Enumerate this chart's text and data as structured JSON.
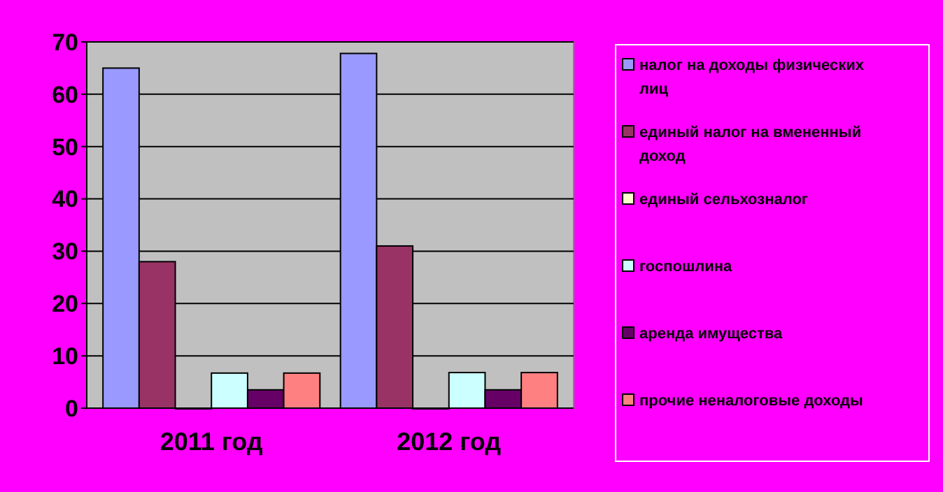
{
  "chart_data": {
    "type": "bar",
    "categories": [
      "2011 год",
      "2012 год"
    ],
    "series": [
      {
        "name": "налог на доходы физических лиц",
        "color": "#9999ff",
        "values": [
          65,
          67.8
        ]
      },
      {
        "name": "единый налог на вмененный доход",
        "color": "#993366",
        "values": [
          28,
          31
        ]
      },
      {
        "name": "единый сельхозналог",
        "color": "#ffffcc",
        "values": [
          0,
          0
        ]
      },
      {
        "name": "госпошлина",
        "color": "#ccffff",
        "values": [
          6.7,
          6.8
        ]
      },
      {
        "name": "аренда имущества",
        "color": "#660066",
        "values": [
          3.5,
          3.5
        ]
      },
      {
        "name": "прочие неналоговые доходы",
        "color": "#ff8080",
        "values": [
          6.7,
          6.8
        ]
      }
    ],
    "ylim": [
      0,
      70
    ],
    "yticks": [
      0,
      10,
      20,
      30,
      40,
      50,
      60,
      70
    ],
    "grid": "y",
    "legend": "right"
  }
}
